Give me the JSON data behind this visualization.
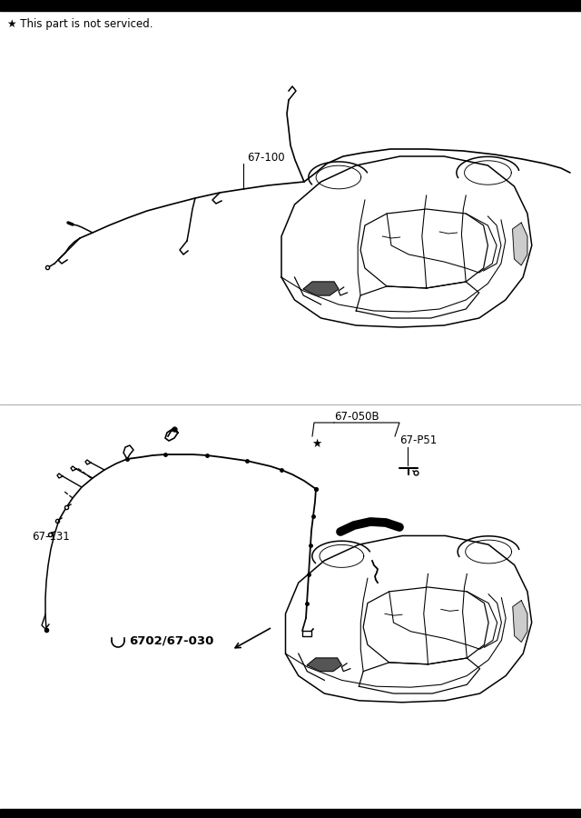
{
  "bg_color": "#ffffff",
  "line_color": "#000000",
  "star_note": "★ This part is not serviced.",
  "star_note_fontsize": 8.5,
  "part1_label": "67-100",
  "part2_label": "67-050B",
  "part3_label": "67-P51",
  "part4_label": "67-131",
  "part5_label": "6702/67-030",
  "label_fontsize": 8.5,
  "fig_width": 6.4,
  "fig_height": 9.0
}
